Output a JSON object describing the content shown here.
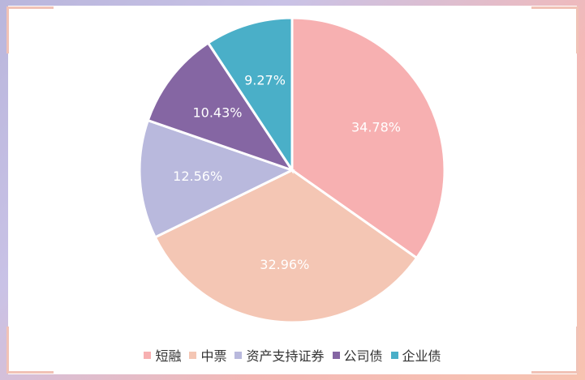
{
  "chart_data": {
    "type": "pie",
    "series": [
      {
        "name": "短融",
        "value": 34.78,
        "label": "34.78%",
        "color": "#f7b0b1"
      },
      {
        "name": "中票",
        "value": 32.96,
        "label": "32.96%",
        "color": "#f4c6b4"
      },
      {
        "name": "资产支持证券",
        "value": 12.56,
        "label": "12.56%",
        "color": "#b9b9dd"
      },
      {
        "name": "公司债",
        "value": 10.43,
        "label": "10.43%",
        "color": "#8566a3"
      },
      {
        "name": "企业债",
        "value": 9.27,
        "label": "9.27%",
        "color": "#4aafc8"
      }
    ],
    "legend_position": "bottom"
  }
}
